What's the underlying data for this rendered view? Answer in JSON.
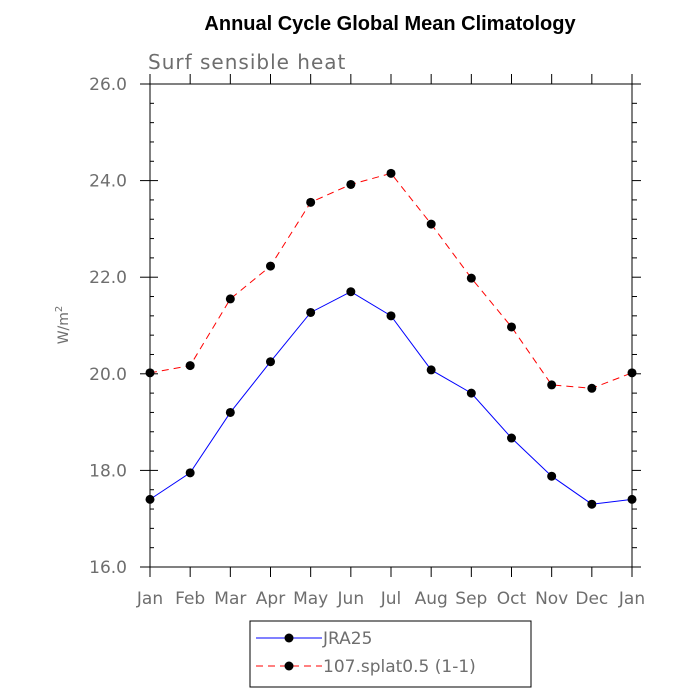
{
  "chart_data": {
    "type": "line",
    "title": "Annual Cycle Global Mean Climatology",
    "subtitle": "Surf sensible heat",
    "ylabel": "W/m",
    "ylabel_superscript": "2",
    "xlabel": "",
    "ylim": [
      16.0,
      26.0
    ],
    "yticks": [
      "16.0",
      "18.0",
      "20.0",
      "22.0",
      "24.0",
      "26.0"
    ],
    "categories": [
      "Jan",
      "Feb",
      "Mar",
      "Apr",
      "May",
      "Jun",
      "Jul",
      "Aug",
      "Sep",
      "Oct",
      "Nov",
      "Dec",
      "Jan"
    ],
    "series": [
      {
        "name": "JRA25",
        "color": "#0000ff",
        "dash": "solid",
        "values": [
          17.4,
          17.95,
          19.2,
          20.25,
          21.27,
          21.7,
          21.2,
          20.08,
          19.6,
          18.67,
          17.88,
          17.3,
          17.4
        ]
      },
      {
        "name": "107.splat0.5 (1-1)",
        "color": "#ff0000",
        "dash": "dashed",
        "values": [
          20.02,
          20.17,
          21.55,
          22.23,
          23.55,
          23.92,
          24.15,
          23.1,
          21.98,
          20.97,
          19.77,
          19.7,
          20.02
        ]
      }
    ],
    "grid": false,
    "legend_placement": "bottom"
  }
}
